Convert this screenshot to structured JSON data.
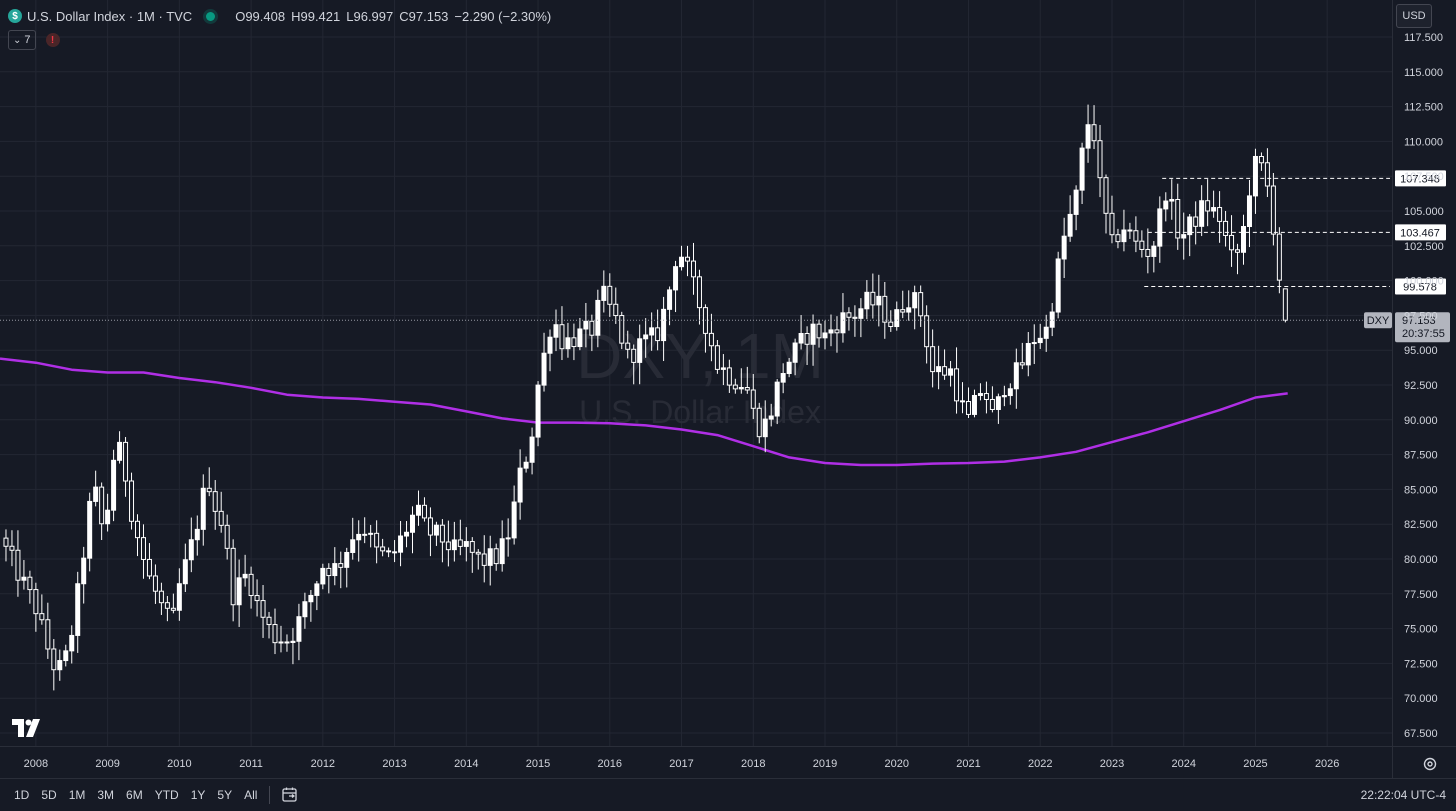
{
  "header": {
    "title": "U.S. Dollar Index · 1M · TVC",
    "logo_glyph": "$",
    "ohlc": [
      {
        "k": "O",
        "v": "99.408"
      },
      {
        "k": "H",
        "v": "99.421"
      },
      {
        "k": "L",
        "v": "96.997"
      },
      {
        "k": "C",
        "v": "97.153"
      },
      {
        "k": "",
        "v": "−2.290 (−2.30%)"
      }
    ],
    "indicator_count": "7",
    "indicator_chevron": "⌄",
    "warning_glyph": "!",
    "currency": "USD"
  },
  "watermark": {
    "symbol": "DXY, 1M",
    "name": "U.S. Dollar Index"
  },
  "bottom_bar": {
    "ranges": [
      "1D",
      "5D",
      "1M",
      "3M",
      "6M",
      "YTD",
      "1Y",
      "5Y",
      "All"
    ],
    "time": "22:22:04 UTC-4"
  },
  "colors": {
    "background": "#161a25",
    "candle": "#ffffff",
    "moving_average": "#b02fe6",
    "price_label_bg": "#b2b5be"
  },
  "icons": {
    "calendar": "calendar-range-icon",
    "settings": "gear-icon",
    "logo": "tradingview-logo-icon"
  },
  "chart_data": {
    "type": "candlestick",
    "title": "U.S. Dollar Index · 1M · TVC",
    "symbol": "DXY",
    "interval": "1M",
    "y_axis": {
      "min": 67.5,
      "max": 117.5,
      "step": 2.5,
      "side": "right",
      "ticks": [
        "117.500",
        "115.000",
        "112.500",
        "110.000",
        "107.500",
        "105.000",
        "102.500",
        "100.000",
        "97.500",
        "95.000",
        "92.500",
        "90.000",
        "87.500",
        "85.000",
        "82.500",
        "80.000",
        "77.500",
        "75.000",
        "72.500",
        "70.000",
        "67.500"
      ]
    },
    "x_axis": {
      "start": 2007.5,
      "end": 2026.75,
      "tick_labels": [
        "2008",
        "2009",
        "2010",
        "2011",
        "2012",
        "2013",
        "2014",
        "2015",
        "2016",
        "2017",
        "2018",
        "2019",
        "2020",
        "2021",
        "2022",
        "2023",
        "2024",
        "2025",
        "2026"
      ]
    },
    "grid": true,
    "last_price": {
      "symbol": "DXY",
      "value": "97.153",
      "countdown": "20:37:55"
    },
    "horizontal_levels": [
      {
        "value": 107.348,
        "label": "107.348",
        "from": 2023.7
      },
      {
        "value": 103.467,
        "label": "103.467",
        "from": 2023.5
      },
      {
        "value": 99.578,
        "label": "99.578",
        "from": 2023.45
      }
    ],
    "anchors": [
      [
        2007.5,
        81.5
      ],
      [
        2007.75,
        79
      ],
      [
        2008.0,
        76.5
      ],
      [
        2008.2,
        73
      ],
      [
        2008.3,
        71.8
      ],
      [
        2008.45,
        73.2
      ],
      [
        2008.6,
        78
      ],
      [
        2008.8,
        85.5
      ],
      [
        2008.95,
        81.5
      ],
      [
        2009.1,
        88
      ],
      [
        2009.2,
        87.5
      ],
      [
        2009.35,
        83
      ],
      [
        2009.55,
        79
      ],
      [
        2009.8,
        76
      ],
      [
        2009.9,
        75.2
      ],
      [
        2010.0,
        78
      ],
      [
        2010.2,
        81.5
      ],
      [
        2010.4,
        86
      ],
      [
        2010.45,
        84.5
      ],
      [
        2010.6,
        82.5
      ],
      [
        2010.75,
        77.5
      ],
      [
        2010.95,
        79
      ],
      [
        2011.1,
        76.5
      ],
      [
        2011.3,
        74.5
      ],
      [
        2011.5,
        74.2
      ],
      [
        2011.6,
        74.8
      ],
      [
        2011.8,
        77
      ],
      [
        2012.0,
        79.5
      ],
      [
        2012.2,
        79.3
      ],
      [
        2012.4,
        81.5
      ],
      [
        2012.55,
        82.5
      ],
      [
        2012.75,
        80.5
      ],
      [
        2012.95,
        80
      ],
      [
        2013.1,
        81.5
      ],
      [
        2013.3,
        83.5
      ],
      [
        2013.45,
        82
      ],
      [
        2013.65,
        81.5
      ],
      [
        2013.85,
        80.5
      ],
      [
        2014.0,
        80.8
      ],
      [
        2014.2,
        79.8
      ],
      [
        2014.45,
        80.2
      ],
      [
        2014.6,
        82
      ],
      [
        2014.75,
        86
      ],
      [
        2014.9,
        88.5
      ],
      [
        2015.0,
        92.5
      ],
      [
        2015.2,
        97.5
      ],
      [
        2015.35,
        95.5
      ],
      [
        2015.55,
        96
      ],
      [
        2015.75,
        96.5
      ],
      [
        2015.9,
        99
      ],
      [
        2016.1,
        97
      ],
      [
        2016.25,
        94.5
      ],
      [
        2016.45,
        95.5
      ],
      [
        2016.65,
        96
      ],
      [
        2016.8,
        98.5
      ],
      [
        2016.95,
        102.5
      ],
      [
        2017.1,
        100.5
      ],
      [
        2017.3,
        97.5
      ],
      [
        2017.5,
        94
      ],
      [
        2017.7,
        93
      ],
      [
        2017.9,
        92.5
      ],
      [
        2018.05,
        89.5
      ],
      [
        2018.2,
        89.8
      ],
      [
        2018.4,
        93.5
      ],
      [
        2018.6,
        95
      ],
      [
        2018.8,
        96.5
      ],
      [
        2019.0,
        96
      ],
      [
        2019.2,
        97.2
      ],
      [
        2019.4,
        97.5
      ],
      [
        2019.6,
        98.5
      ],
      [
        2019.75,
        98.2
      ],
      [
        2019.95,
        96.8
      ],
      [
        2020.1,
        98.5
      ],
      [
        2020.2,
        99
      ],
      [
        2020.35,
        97.5
      ],
      [
        2020.5,
        93.5
      ],
      [
        2020.75,
        93.5
      ],
      [
        2020.9,
        91
      ],
      [
        2021.0,
        90
      ],
      [
        2021.2,
        92.5
      ],
      [
        2021.35,
        90
      ],
      [
        2021.5,
        92.5
      ],
      [
        2021.7,
        93.5
      ],
      [
        2021.9,
        95.8
      ],
      [
        2022.1,
        96.5
      ],
      [
        2022.3,
        102.5
      ],
      [
        2022.5,
        106
      ],
      [
        2022.65,
        111.5
      ],
      [
        2022.75,
        110.5
      ],
      [
        2022.85,
        106
      ],
      [
        2023.0,
        102.5
      ],
      [
        2023.15,
        104
      ],
      [
        2023.35,
        102.5
      ],
      [
        2023.55,
        102
      ],
      [
        2023.75,
        106.5
      ],
      [
        2023.95,
        103
      ],
      [
        2024.1,
        104
      ],
      [
        2024.3,
        105.5
      ],
      [
        2024.5,
        104.5
      ],
      [
        2024.7,
        101
      ],
      [
        2024.85,
        104
      ],
      [
        2024.95,
        108
      ],
      [
        2025.05,
        108.5
      ],
      [
        2025.15,
        107.2
      ],
      [
        2025.25,
        104
      ],
      [
        2025.35,
        99.5
      ],
      [
        2025.45,
        97.15
      ]
    ],
    "last_candle": {
      "open": 99.408,
      "high": 99.421,
      "low": 96.997,
      "close": 97.153
    },
    "ma_series": {
      "name": "",
      "color": "#b02fe6",
      "points": [
        [
          2007.5,
          94.4
        ],
        [
          2008.0,
          94.1
        ],
        [
          2008.5,
          93.6
        ],
        [
          2009.0,
          93.4
        ],
        [
          2009.5,
          93.4
        ],
        [
          2010.0,
          93.0
        ],
        [
          2010.5,
          92.7
        ],
        [
          2011.0,
          92.3
        ],
        [
          2011.5,
          91.8
        ],
        [
          2012.0,
          91.6
        ],
        [
          2012.5,
          91.5
        ],
        [
          2013.0,
          91.3
        ],
        [
          2013.5,
          91.1
        ],
        [
          2014.0,
          90.6
        ],
        [
          2014.5,
          90.1
        ],
        [
          2015.0,
          89.8
        ],
        [
          2015.5,
          89.8
        ],
        [
          2016.0,
          89.75
        ],
        [
          2016.5,
          89.6
        ],
        [
          2017.0,
          89.3
        ],
        [
          2017.5,
          88.9
        ],
        [
          2018.0,
          88.1
        ],
        [
          2018.5,
          87.3
        ],
        [
          2019.0,
          86.9
        ],
        [
          2019.5,
          86.75
        ],
        [
          2020.0,
          86.75
        ],
        [
          2020.5,
          86.85
        ],
        [
          2021.0,
          86.9
        ],
        [
          2021.5,
          87.0
        ],
        [
          2022.0,
          87.3
        ],
        [
          2022.5,
          87.7
        ],
        [
          2023.0,
          88.4
        ],
        [
          2023.5,
          89.1
        ],
        [
          2024.0,
          89.9
        ],
        [
          2024.5,
          90.7
        ],
        [
          2025.0,
          91.6
        ],
        [
          2025.45,
          91.9
        ]
      ]
    }
  }
}
